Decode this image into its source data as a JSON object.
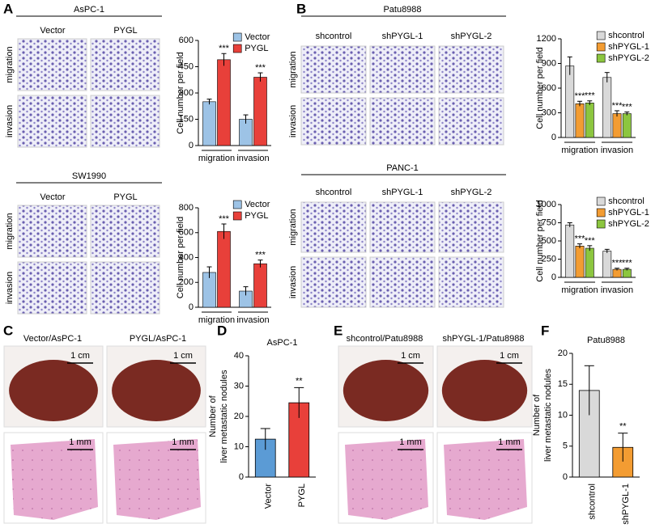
{
  "chart_data": [
    {
      "type": "bar",
      "ylabel": "Cell number per field",
      "categories": [
        "migration",
        "invasion"
      ],
      "series": [
        {
          "name": "Vector",
          "color": "#9dc3e6",
          "values": [
            250,
            150
          ],
          "errors": [
            15,
            25
          ]
        },
        {
          "name": "PYGL",
          "color": "#e8403a",
          "values": [
            490,
            390
          ],
          "errors": [
            35,
            25
          ],
          "significance": [
            "***",
            "***"
          ]
        }
      ],
      "ylim": [
        0,
        600
      ],
      "yticks": [
        0,
        150,
        300,
        450,
        600
      ],
      "legend": "upper right"
    },
    {
      "type": "bar",
      "ylabel": "Cell number per field",
      "categories": [
        "migration",
        "invasion"
      ],
      "series": [
        {
          "name": "Vector",
          "color": "#9dc3e6",
          "values": [
            280,
            130
          ],
          "errors": [
            45,
            35
          ]
        },
        {
          "name": "PYGL",
          "color": "#e8403a",
          "values": [
            610,
            350
          ],
          "errors": [
            60,
            30
          ],
          "significance": [
            "***",
            "***"
          ]
        }
      ],
      "ylim": [
        0,
        800
      ],
      "yticks": [
        0,
        200,
        400,
        600,
        800
      ],
      "legend": "upper right"
    },
    {
      "type": "bar",
      "ylabel": "Cell number per field",
      "categories": [
        "migration",
        "invasion"
      ],
      "series": [
        {
          "name": "shcontrol",
          "color": "#d9d9d9",
          "values": [
            870,
            730
          ],
          "errors": [
            110,
            60
          ]
        },
        {
          "name": "shPYGL-1",
          "color": "#f39c32",
          "values": [
            410,
            290
          ],
          "errors": [
            30,
            35
          ],
          "significance": [
            "***",
            "***"
          ]
        },
        {
          "name": "shPYGL-2",
          "color": "#8cc63f",
          "values": [
            420,
            290
          ],
          "errors": [
            25,
            20
          ],
          "significance": [
            "***",
            "***"
          ]
        }
      ],
      "ylim": [
        0,
        1200
      ],
      "yticks": [
        0,
        300,
        600,
        900,
        1200
      ],
      "legend": "upper right"
    },
    {
      "type": "bar",
      "ylabel": "Cell number per field",
      "categories": [
        "migration",
        "invasion"
      ],
      "series": [
        {
          "name": "shcontrol",
          "color": "#d9d9d9",
          "values": [
            720,
            360
          ],
          "errors": [
            30,
            25
          ]
        },
        {
          "name": "shPYGL-1",
          "color": "#f39c32",
          "values": [
            430,
            110
          ],
          "errors": [
            30,
            15
          ],
          "significance": [
            "***",
            "***"
          ]
        },
        {
          "name": "shPYGL-2",
          "color": "#8cc63f",
          "values": [
            400,
            110
          ],
          "errors": [
            35,
            15
          ],
          "significance": [
            "***",
            "***"
          ]
        }
      ],
      "ylim": [
        0,
        1000
      ],
      "yticks": [
        0,
        250,
        500,
        750,
        1000
      ],
      "legend": "upper right"
    },
    {
      "type": "bar",
      "title": "AsPC-1",
      "ylabel": [
        "Number of",
        "liver metastatic nodules"
      ],
      "categories": [
        "Vector",
        "PYGL"
      ],
      "values": [
        12.5,
        24.5
      ],
      "errors": [
        3.5,
        5
      ],
      "colors": [
        "#5b9bd5",
        "#e8403a"
      ],
      "significance": [
        null,
        "**"
      ],
      "ylim": [
        0,
        40
      ],
      "yticks": [
        0,
        10,
        20,
        30,
        40
      ]
    },
    {
      "type": "bar",
      "title": "Patu8988",
      "ylabel": [
        "Number of",
        "liver metastatic nodules"
      ],
      "categories": [
        "shcontrol",
        "shPYGL-1"
      ],
      "values": [
        14,
        4.8
      ],
      "errors": [
        4,
        2.3
      ],
      "colors": [
        "#d9d9d9",
        "#f39c32"
      ],
      "significance": [
        null,
        "**"
      ],
      "ylim": [
        0,
        20
      ],
      "yticks": [
        0,
        5,
        10,
        15,
        20
      ]
    }
  ],
  "panel_labels": [
    "A",
    "B",
    "C",
    "D",
    "E",
    "F"
  ],
  "micrograph_grids": [
    {
      "title": "AsPC-1",
      "columns": [
        "Vector",
        "PYGL"
      ],
      "rows": [
        "migration",
        "invasion"
      ]
    },
    {
      "title": "SW1990",
      "columns": [
        "Vector",
        "PYGL"
      ],
      "rows": [
        "migration",
        "invasion"
      ]
    },
    {
      "title": "Patu8988",
      "columns": [
        "shcontrol",
        "shPYGL-1",
        "shPYGL-2"
      ],
      "rows": [
        "migration",
        "invasion"
      ]
    },
    {
      "title": "PANC-1",
      "columns": [
        "shcontrol",
        "shPYGL-1",
        "shPYGL-2"
      ],
      "rows": [
        "migration",
        "invasion"
      ]
    }
  ],
  "tissue_panels": [
    {
      "columns": [
        "Vector/AsPC-1",
        "PYGL/AsPC-1"
      ],
      "scale_bars": [
        "1 cm",
        "1 cm",
        "1 mm",
        "1 mm"
      ]
    },
    {
      "columns": [
        "shcontrol/Patu8988",
        "shPYGL-1/Patu8988"
      ],
      "scale_bars": [
        "1 cm",
        "1 cm",
        "1 mm",
        "1 mm"
      ]
    }
  ]
}
